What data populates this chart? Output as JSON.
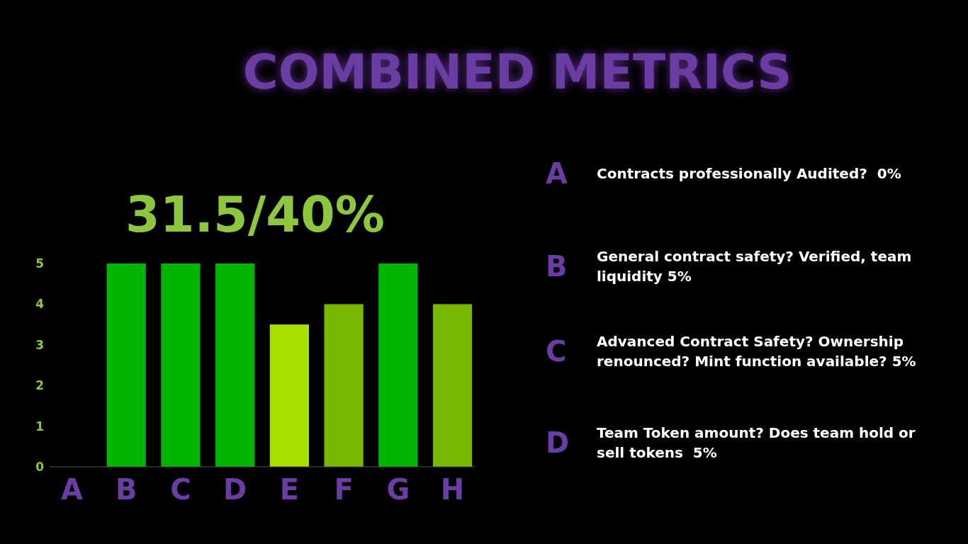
{
  "chart_data": {
    "type": "bar",
    "title": "COMBINED METRICS",
    "subtitle": "31.5/40%",
    "categories": [
      "A",
      "B",
      "C",
      "D",
      "E",
      "F",
      "G",
      "H"
    ],
    "values": [
      0,
      5,
      5,
      5,
      3.5,
      4,
      5,
      4
    ],
    "colors": [
      "#00b400",
      "#00b400",
      "#00b400",
      "#00b400",
      "#a6e000",
      "#78b800",
      "#00b400",
      "#78b800"
    ],
    "ylim": [
      0,
      5
    ],
    "yticks": [
      0,
      1,
      2,
      3,
      4,
      5
    ],
    "grid": false,
    "annotations": [
      "A",
      "Contracts professionally Audited?  0%",
      "B",
      "General contract safety? Verified, team liquidity 5%",
      "C",
      "Advanced Contract Safety? Ownership renounced? Mint function available? 5%",
      "D",
      "Team Token amount? Does team hold or sell tokens  5%"
    ]
  }
}
